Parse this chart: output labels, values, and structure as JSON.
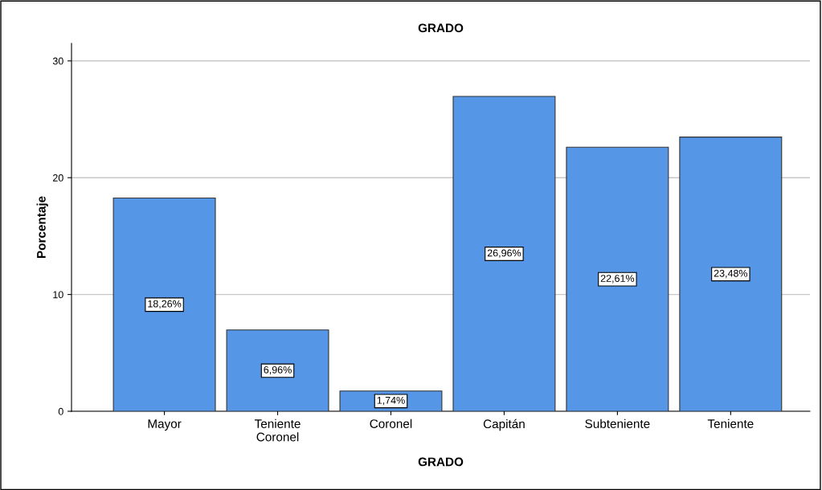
{
  "chart_data": {
    "type": "bar",
    "title": "GRADO",
    "xlabel": "GRADO",
    "ylabel": "Porcentaje",
    "categories": [
      "Mayor",
      "Teniente\nCoronel",
      "Coronel",
      "Capitán",
      "Subteniente",
      "Teniente"
    ],
    "values": [
      18.26,
      6.96,
      1.74,
      26.96,
      22.61,
      23.48
    ],
    "value_labels": [
      "18,26%",
      "6,96%",
      "1,74%",
      "26,96%",
      "22,61%",
      "23,48%"
    ],
    "color": "#5596e6",
    "ylim": [
      0,
      31.5
    ],
    "yticks": [
      0,
      10,
      20,
      30
    ],
    "grid": "y",
    "legend": false
  }
}
